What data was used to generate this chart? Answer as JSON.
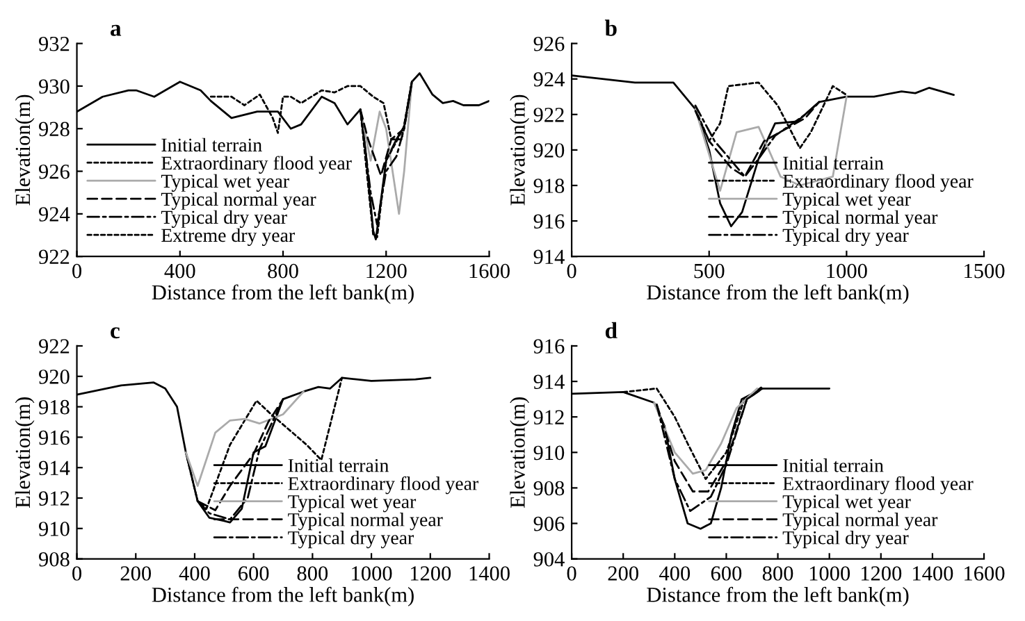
{
  "chart_data": [
    {
      "type": "line",
      "title": "a",
      "xlabel": "Distance from the left bank(m)",
      "ylabel": "Elevation(m)",
      "xlim": [
        0,
        1600
      ],
      "xticks": [
        0,
        400,
        800,
        1200,
        1600
      ],
      "ylim": [
        922,
        932
      ],
      "yticks": [
        922,
        924,
        926,
        928,
        930,
        932
      ],
      "grid": false,
      "legend": "bottom left",
      "marker": "none",
      "series": [
        {
          "name": "Initial terrain",
          "color": "#000000",
          "line_style": "solid",
          "x": [
            0,
            100,
            200,
            230,
            300,
            400,
            480,
            520,
            600,
            700,
            780,
            830,
            870,
            950,
            1000,
            1050,
            1100,
            1120,
            1150,
            1160,
            1200,
            1240,
            1270,
            1300,
            1330,
            1380,
            1420,
            1460,
            1500,
            1560,
            1600
          ],
          "values": [
            928.8,
            929.5,
            929.8,
            929.8,
            929.5,
            930.2,
            929.8,
            929.3,
            928.5,
            928.8,
            928.8,
            928.0,
            928.2,
            929.5,
            929.2,
            928.2,
            928.9,
            927.0,
            923.2,
            922.8,
            926.5,
            927.5,
            928.1,
            930.2,
            930.6,
            929.6,
            929.2,
            929.3,
            929.1,
            929.1,
            929.3
          ]
        },
        {
          "name": "Extraordinary flood year",
          "color": "#000000",
          "line_style": "dotted",
          "x": [
            520,
            600,
            650,
            710,
            760,
            780,
            800,
            830,
            870,
            950,
            1000,
            1050,
            1100,
            1150,
            1190,
            1220,
            1260,
            1300
          ],
          "values": [
            929.5,
            929.5,
            929.1,
            929.6,
            928.5,
            927.8,
            929.5,
            929.5,
            929.2,
            929.8,
            929.7,
            930.0,
            930.0,
            929.5,
            929.2,
            927.5,
            927.5,
            930.2
          ]
        },
        {
          "name": "Typical wet year",
          "color": "#aaaaaa",
          "line_style": "solid",
          "x": [
            1100,
            1140,
            1175,
            1200,
            1250,
            1270,
            1300
          ],
          "values": [
            928.9,
            926.5,
            928.8,
            928.0,
            924.0,
            926.0,
            930.2
          ]
        },
        {
          "name": "Typical normal year",
          "color": "#000000",
          "line_style": "dashed",
          "x": [
            1100,
            1130,
            1180,
            1220,
            1270,
            1300
          ],
          "values": [
            928.9,
            927.5,
            925.8,
            927.5,
            928.0,
            930.2
          ]
        },
        {
          "name": "Typical dry year",
          "color": "#000000",
          "line_style": "dashdot",
          "x": [
            1100,
            1140,
            1165,
            1200,
            1240,
            1270,
            1300
          ],
          "values": [
            928.9,
            925.0,
            923.5,
            926.0,
            926.7,
            928.0,
            930.2
          ]
        },
        {
          "name": "Extreme dry year",
          "color": "#000000",
          "line_style": "dotted",
          "x": [
            1100,
            1150,
            1165,
            1200,
            1240,
            1270,
            1300
          ],
          "values": [
            928.9,
            923.0,
            922.9,
            926.5,
            927.4,
            928.1,
            930.2
          ]
        }
      ]
    },
    {
      "type": "line",
      "title": "b",
      "xlabel": "Distance from the left bank(m)",
      "ylabel": "Elevation(m)",
      "xlim": [
        0,
        1500
      ],
      "xticks": [
        0,
        500,
        1000,
        1500
      ],
      "ylim": [
        914,
        926
      ],
      "yticks": [
        914,
        916,
        918,
        920,
        922,
        924,
        926
      ],
      "grid": false,
      "legend": "bottom right",
      "marker": "none",
      "series": [
        {
          "name": "Initial terrain",
          "color": "#000000",
          "line_style": "solid",
          "x": [
            0,
            230,
            370,
            450,
            500,
            540,
            580,
            620,
            680,
            740,
            820,
            900,
            1000,
            1100,
            1200,
            1250,
            1300,
            1390
          ],
          "values": [
            924.2,
            923.8,
            923.8,
            922.3,
            920.0,
            917.0,
            915.7,
            916.5,
            919.5,
            921.5,
            921.6,
            922.7,
            923.0,
            923.0,
            923.3,
            923.2,
            923.5,
            923.1
          ]
        },
        {
          "name": "Extraordinary flood year",
          "color": "#000000",
          "line_style": "dotted",
          "x": [
            450,
            500,
            540,
            570,
            680,
            750,
            830,
            870,
            950,
            1000
          ],
          "values": [
            922.3,
            920.5,
            921.5,
            923.6,
            923.8,
            922.5,
            920.1,
            921.0,
            923.6,
            923.1
          ]
        },
        {
          "name": "Typical wet year",
          "color": "#aaaaaa",
          "line_style": "solid",
          "x": [
            450,
            540,
            600,
            680,
            760,
            830,
            950,
            1000
          ],
          "values": [
            922.3,
            917.7,
            921.0,
            921.3,
            918.5,
            918.0,
            918.5,
            923.0
          ]
        },
        {
          "name": "Typical normal year",
          "color": "#000000",
          "line_style": "dashed",
          "x": [
            450,
            500,
            580,
            630,
            700,
            850,
            900
          ],
          "values": [
            922.2,
            920.5,
            919.0,
            918.5,
            920.5,
            921.8,
            922.7
          ]
        },
        {
          "name": "Typical dry year",
          "color": "#000000",
          "line_style": "dashdot",
          "x": [
            450,
            520,
            630,
            680,
            740,
            850,
            900
          ],
          "values": [
            922.5,
            920.5,
            918.5,
            919.5,
            920.8,
            922.0,
            922.7
          ]
        }
      ]
    },
    {
      "type": "line",
      "title": "c",
      "xlabel": "Distance from the left bank(m)",
      "ylabel": "Elevation(m)",
      "xlim": [
        0,
        1400
      ],
      "xticks": [
        0,
        200,
        400,
        600,
        800,
        1000,
        1200,
        1400
      ],
      "ylim": [
        908,
        922
      ],
      "yticks": [
        908,
        910,
        912,
        914,
        916,
        918,
        920,
        922
      ],
      "grid": false,
      "legend": "bottom right",
      "marker": "none",
      "series": [
        {
          "name": "Initial terrain",
          "color": "#000000",
          "line_style": "solid",
          "x": [
            0,
            150,
            260,
            300,
            340,
            370,
            410,
            450,
            500,
            520,
            560,
            600,
            640,
            700,
            770,
            820,
            860,
            900,
            950,
            1000,
            1150,
            1200
          ],
          "values": [
            918.8,
            919.4,
            919.6,
            919.2,
            918.0,
            915.0,
            911.8,
            910.7,
            910.5,
            910.4,
            911.3,
            915.0,
            915.4,
            918.5,
            919.0,
            919.3,
            919.2,
            919.9,
            919.8,
            919.7,
            919.8,
            919.9
          ]
        },
        {
          "name": "Extraordinary flood year",
          "color": "#000000",
          "line_style": "dotted",
          "x": [
            370,
            410,
            440,
            520,
            610,
            660,
            780,
            830,
            900
          ],
          "values": [
            915.0,
            911.8,
            911.3,
            915.5,
            918.4,
            917.5,
            915.5,
            914.5,
            919.9
          ]
        },
        {
          "name": "Typical wet year",
          "color": "#aaaaaa",
          "line_style": "solid",
          "x": [
            370,
            410,
            470,
            520,
            570,
            620,
            700,
            770
          ],
          "values": [
            915.0,
            912.8,
            916.3,
            917.1,
            917.2,
            916.9,
            917.5,
            919.0
          ]
        },
        {
          "name": "Typical normal year",
          "color": "#000000",
          "line_style": "dashed",
          "x": [
            410,
            470,
            520,
            600,
            650,
            700
          ],
          "values": [
            911.8,
            911.2,
            912.8,
            914.9,
            917.0,
            918.5
          ]
        },
        {
          "name": "Typical dry year",
          "color": "#000000",
          "line_style": "dashdot",
          "x": [
            410,
            450,
            520,
            580,
            620,
            700
          ],
          "values": [
            911.8,
            911.0,
            910.6,
            912.0,
            915.2,
            918.5
          ]
        }
      ]
    },
    {
      "type": "line",
      "title": "d",
      "xlabel": "Distance from the left bank(m)",
      "ylabel": "Elevation(m)",
      "xlim": [
        0,
        1600
      ],
      "xticks": [
        0,
        200,
        400,
        600,
        800,
        1000,
        1200,
        1400,
        1600
      ],
      "ylim": [
        904,
        916
      ],
      "yticks": [
        904,
        906,
        908,
        910,
        912,
        914,
        916
      ],
      "grid": false,
      "legend": "bottom right",
      "marker": "none",
      "series": [
        {
          "name": "Initial terrain",
          "color": "#000000",
          "line_style": "solid",
          "x": [
            0,
            200,
            320,
            360,
            400,
            450,
            500,
            540,
            580,
            620,
            660,
            740,
            1000
          ],
          "values": [
            913.3,
            913.4,
            912.8,
            911.5,
            908.5,
            906.0,
            905.7,
            906.0,
            908.0,
            911.0,
            913.0,
            913.6,
            913.6
          ]
        },
        {
          "name": "Extraordinary flood year",
          "color": "#000000",
          "line_style": "dotted",
          "x": [
            200,
            330,
            400,
            450,
            520,
            600,
            670,
            740
          ],
          "values": [
            913.4,
            913.6,
            912.0,
            910.5,
            908.5,
            910.0,
            913.0,
            913.7
          ]
        },
        {
          "name": "Typical wet year",
          "color": "#aaaaaa",
          "line_style": "solid",
          "x": [
            320,
            400,
            470,
            520,
            580,
            640,
            720
          ],
          "values": [
            912.8,
            910.0,
            908.8,
            909.0,
            910.5,
            912.5,
            913.6
          ]
        },
        {
          "name": "Typical normal year",
          "color": "#000000",
          "line_style": "dashed",
          "x": [
            330,
            400,
            470,
            530,
            600,
            680,
            740
          ],
          "values": [
            912.7,
            909.5,
            907.8,
            907.8,
            909.5,
            913.0,
            913.6
          ]
        },
        {
          "name": "Typical dry year",
          "color": "#000000",
          "line_style": "dashdot",
          "x": [
            330,
            400,
            460,
            540,
            600,
            680,
            740
          ],
          "values": [
            912.7,
            908.5,
            906.7,
            907.5,
            909.3,
            913.0,
            913.6
          ]
        }
      ]
    }
  ]
}
